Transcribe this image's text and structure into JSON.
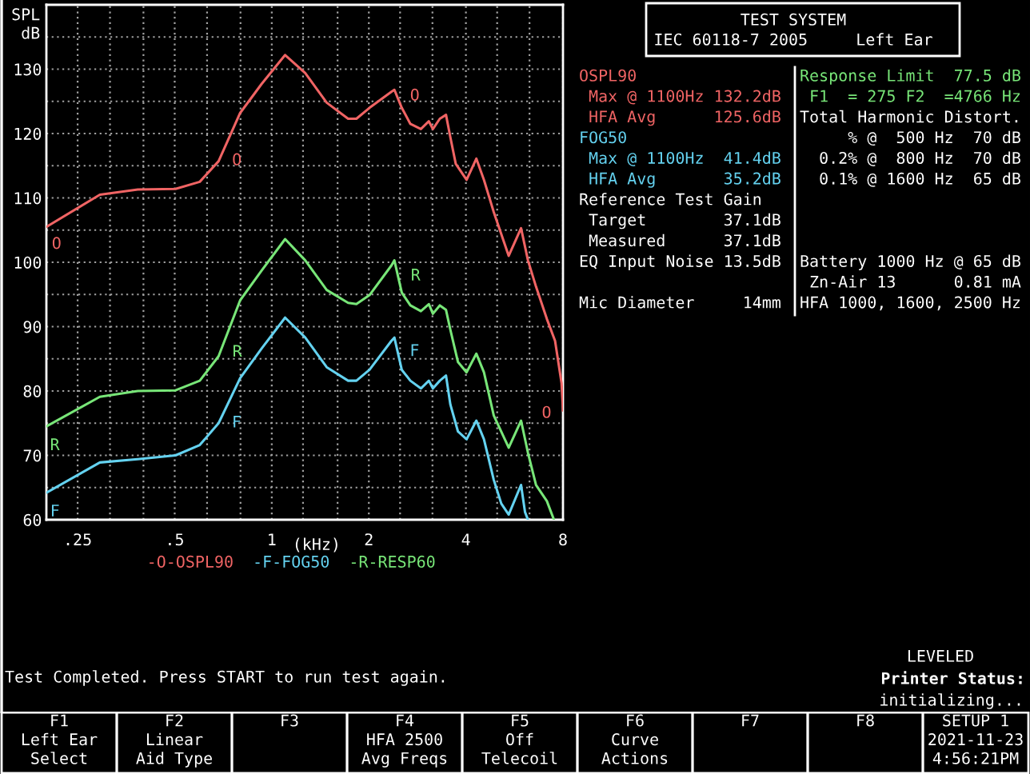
{
  "chart_data": [
    {
      "type": "line",
      "xlabel": "(kHz)",
      "ylabel": "SPL\ndB",
      "log": "x",
      "xlim": [
        0.2,
        8
      ],
      "ylim": [
        60,
        140
      ],
      "xticks": [
        {
          "value": 0.25,
          "label": ".25"
        },
        {
          "value": 0.315,
          "label": null
        },
        {
          "value": 0.4,
          "label": null
        },
        {
          "value": 0.5,
          "label": ".5"
        },
        {
          "value": 0.63,
          "label": null
        },
        {
          "value": 0.8,
          "label": null
        },
        1,
        {
          "value": 1.25,
          "label": null
        },
        {
          "value": 1.6,
          "label": null
        },
        2,
        {
          "value": 2.5,
          "label": null
        },
        {
          "value": 3.15,
          "label": null
        },
        4,
        {
          "value": 5,
          "label": null
        },
        {
          "value": 6.3,
          "label": null
        },
        8
      ],
      "yticks": [
        60,
        {
          "value": 65,
          "label": null
        },
        70,
        {
          "value": 75,
          "label": null
        },
        80,
        {
          "value": 85,
          "label": null
        },
        90,
        {
          "value": 95,
          "label": null
        },
        100,
        {
          "value": 105,
          "label": null
        },
        110,
        {
          "value": 115,
          "label": null
        },
        120,
        {
          "value": 125,
          "label": null
        },
        130,
        {
          "value": 135,
          "label": null
        }
      ],
      "grid": true,
      "legend": "bottom",
      "line_style": "solid",
      "series": [
        {
          "name": "-O-OSPL90",
          "color": "#f06464",
          "x": [
            0.2,
            0.293,
            0.384,
            0.503,
            0.598,
            0.684,
            0.798,
            0.93,
            1.1,
            1.27,
            1.48,
            1.725,
            1.83,
            2.01,
            2.35,
            2.4,
            2.53,
            2.69,
            2.9,
            3.07,
            3.16,
            3.32,
            3.47,
            3.58,
            3.72,
            4.02,
            4.31,
            4.55,
            4.88,
            5.43,
            5.93,
            6.23,
            6.6,
            7.13,
            7.56,
            7.92,
            8.0
          ],
          "values": [
            105.5,
            110.5,
            111.3,
            111.4,
            112.5,
            115.7,
            123.2,
            127.7,
            132.2,
            129.4,
            124.8,
            122.3,
            122.3,
            124.0,
            126.5,
            126.8,
            124.0,
            121.5,
            120.7,
            121.9,
            120.7,
            122.3,
            122.9,
            119.4,
            115.3,
            112.8,
            116.1,
            112.8,
            107.8,
            101.0,
            105.3,
            100.3,
            96.2,
            91.2,
            87.8,
            81.2,
            77.0
          ]
        },
        {
          "name": "-F-FOG50",
          "color": "#64d2f0",
          "x": [
            0.2,
            0.293,
            0.384,
            0.503,
            0.598,
            0.684,
            0.798,
            0.93,
            1.1,
            1.27,
            1.48,
            1.725,
            1.83,
            2.01,
            2.35,
            2.4,
            2.53,
            2.69,
            2.9,
            3.07,
            3.16,
            3.32,
            3.47,
            3.58,
            3.78,
            4.02,
            4.31,
            4.55,
            4.88,
            5.15,
            5.43,
            5.93,
            6.1,
            6.23
          ],
          "values": [
            64.2,
            68.9,
            69.4,
            70.0,
            71.6,
            75.0,
            82.0,
            86.6,
            91.4,
            88.3,
            83.7,
            81.6,
            81.6,
            83.3,
            87.8,
            88.3,
            83.3,
            81.6,
            80.4,
            81.6,
            80.4,
            81.6,
            82.4,
            77.9,
            73.7,
            72.5,
            75.4,
            72.5,
            66.2,
            62.5,
            60.8,
            65.4,
            61.2,
            60.0
          ]
        },
        {
          "name": "-R-RESP60",
          "color": "#78e678",
          "x": [
            0.2,
            0.293,
            0.384,
            0.503,
            0.598,
            0.684,
            0.798,
            0.93,
            1.1,
            1.27,
            1.48,
            1.725,
            1.83,
            2.01,
            2.35,
            2.4,
            2.53,
            2.69,
            2.9,
            3.07,
            3.16,
            3.32,
            3.47,
            3.58,
            3.78,
            4.02,
            4.31,
            4.55,
            4.88,
            5.43,
            5.93,
            6.23,
            6.6,
            7.13,
            7.5
          ],
          "values": [
            74.5,
            79.1,
            80.0,
            80.1,
            81.6,
            85.4,
            94.1,
            98.7,
            103.6,
            100.3,
            95.7,
            93.7,
            93.5,
            94.9,
            99.5,
            100.3,
            95.3,
            93.3,
            92.4,
            93.5,
            92.0,
            93.3,
            92.6,
            89.5,
            84.5,
            82.9,
            85.8,
            82.9,
            76.2,
            71.2,
            75.4,
            70.4,
            65.4,
            62.9,
            60.0
          ]
        }
      ],
      "annotations": [
        {
          "text": "O",
          "x": 0.204,
          "y": 105.1
        },
        {
          "text": "O",
          "x": 0.7,
          "y": 116.9
        },
        {
          "text": "O",
          "x": 2.49,
          "y": 124.8
        },
        {
          "text": "O",
          "x": 8.0,
          "y": 77.0
        },
        {
          "text": "F",
          "x": 0.203,
          "y": 63.6
        },
        {
          "text": "F",
          "x": 0.7,
          "y": 76.2
        },
        {
          "text": "F",
          "x": 2.47,
          "y": 85.5
        },
        {
          "text": "R",
          "x": 0.203,
          "y": 73.9
        },
        {
          "text": "R",
          "x": 0.7,
          "y": 87.0
        },
        {
          "text": "R",
          "x": 2.49,
          "y": 97.2
        }
      ]
    },
    {
      "type": "other",
      "title": "TEST SYSTEM",
      "subtitle": "IEC 60118-7 2005     Left Ear",
      "annotations": [
        "OSPL90",
        " Max @ 1100Hz 132.2dB",
        " HFA Avg      125.6dB",
        "FOG50",
        " Max @ 1100Hz  41.4dB",
        " HFA Avg       35.2dB",
        "Reference Test Gain",
        " Target        37.1dB",
        " Measured      37.1dB",
        "EQ Input Noise 13.5dB",
        "Mic Diameter     14mm",
        "Response Limit  77.5 dB",
        " F1  = 275 F2  =4766 Hz",
        "Total Harmonic Distort.",
        "     % @  500 Hz  70 dB",
        "  0.2% @  800 Hz  70 dB",
        "  0.1% @ 1600 Hz  65 dB",
        "Battery 1000 Hz @ 65 dB",
        " Zn-Air 13      0.81 mA",
        "HFA 1000, 1600, 2500 Hz"
      ]
    },
    {
      "type": "other",
      "annotations": [
        "Test Completed. Press START to run test again.",
        "LEVELED",
        "Printer Status:",
        "initializing..."
      ]
    },
    {
      "type": "other",
      "annotations": [
        "F1\nLeft Ear\nSelect",
        "F2\nLinear\nAid Type",
        "F3",
        "F4\nHFA 2500\nAvg Freqs",
        "F5\nOff\nTelecoil",
        "F6\nCurve\nActions",
        "F7",
        "F8",
        "SETUP 1\n2021-11-23\n4:56:21PM"
      ]
    }
  ]
}
